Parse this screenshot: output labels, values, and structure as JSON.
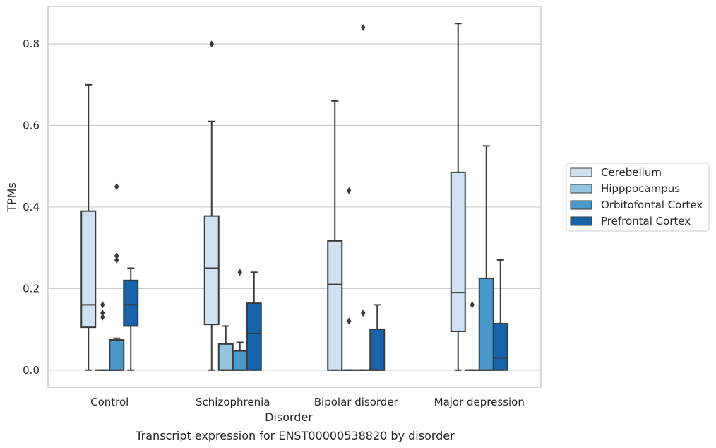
{
  "chart_data": {
    "type": "box",
    "caption": "Transcript expression for ENST00000538820 by disorder",
    "xlabel": "Disorder",
    "ylabel": "TPMs",
    "ylim": [
      -0.042,
      0.892
    ],
    "yticks": [
      0.0,
      0.2,
      0.4,
      0.6,
      0.8
    ],
    "ytick_labels": [
      "0.0",
      "0.2",
      "0.4",
      "0.6",
      "0.8"
    ],
    "grid": "horizontal",
    "legend_position": "right",
    "categories": [
      "Control",
      "Schizophrenia",
      "Bipolar disorder",
      "Major depression"
    ],
    "series": [
      {
        "name": "Cerebellum",
        "color": "#d0e1f2",
        "boxes": [
          {
            "whislo": 0.0,
            "q1": 0.105,
            "med": 0.16,
            "q3": 0.39,
            "whishi": 0.7,
            "fliers": []
          },
          {
            "whislo": 0.0,
            "q1": 0.112,
            "med": 0.25,
            "q3": 0.378,
            "whishi": 0.61,
            "fliers": [
              0.8
            ]
          },
          {
            "whislo": 0.0,
            "q1": 0.0,
            "med": 0.21,
            "q3": 0.317,
            "whishi": 0.66,
            "fliers": []
          },
          {
            "whislo": 0.0,
            "q1": 0.095,
            "med": 0.19,
            "q3": 0.485,
            "whishi": 0.85,
            "fliers": []
          }
        ]
      },
      {
        "name": "Hipppocampus",
        "color": "#94c4df",
        "boxes": [
          {
            "whislo": 0.0,
            "q1": 0.0,
            "med": 0.0,
            "q3": 0.0,
            "whishi": 0.0,
            "fliers": [
              0.13,
              0.14,
              0.16
            ]
          },
          {
            "whislo": 0.0,
            "q1": 0.0,
            "med": 0.0,
            "q3": 0.064,
            "whishi": 0.108,
            "fliers": []
          },
          {
            "whislo": 0.0,
            "q1": 0.0,
            "med": 0.0,
            "q3": 0.0,
            "whishi": 0.0,
            "fliers": [
              0.12,
              0.44
            ]
          },
          {
            "whislo": 0.0,
            "q1": 0.0,
            "med": 0.0,
            "q3": 0.0,
            "whishi": 0.0,
            "fliers": [
              0.16
            ]
          }
        ]
      },
      {
        "name": "Orbitofontal Cortex",
        "color": "#4a98c9",
        "boxes": [
          {
            "whislo": 0.0,
            "q1": 0.0,
            "med": 0.0,
            "q3": 0.074,
            "whishi": 0.078,
            "fliers": [
              0.27,
              0.28,
              0.45
            ]
          },
          {
            "whislo": 0.0,
            "q1": 0.0,
            "med": 0.0,
            "q3": 0.047,
            "whishi": 0.068,
            "fliers": [
              0.24
            ]
          },
          {
            "whislo": 0.0,
            "q1": 0.0,
            "med": 0.0,
            "q3": 0.0,
            "whishi": 0.0,
            "fliers": [
              0.14,
              0.84
            ]
          },
          {
            "whislo": 0.0,
            "q1": 0.0,
            "med": 0.0,
            "q3": 0.225,
            "whishi": 0.55,
            "fliers": []
          }
        ]
      },
      {
        "name": "Prefrontal Cortex",
        "color": "#1764ab",
        "boxes": [
          {
            "whislo": 0.0,
            "q1": 0.108,
            "med": 0.16,
            "q3": 0.22,
            "whishi": 0.25,
            "fliers": []
          },
          {
            "whislo": 0.0,
            "q1": 0.0,
            "med": 0.09,
            "q3": 0.164,
            "whishi": 0.24,
            "fliers": []
          },
          {
            "whislo": 0.0,
            "q1": 0.0,
            "med": 0.0,
            "q3": 0.1,
            "whishi": 0.16,
            "fliers": []
          },
          {
            "whislo": 0.0,
            "q1": 0.0,
            "med": 0.03,
            "q3": 0.114,
            "whishi": 0.27,
            "fliers": []
          }
        ]
      }
    ]
  }
}
